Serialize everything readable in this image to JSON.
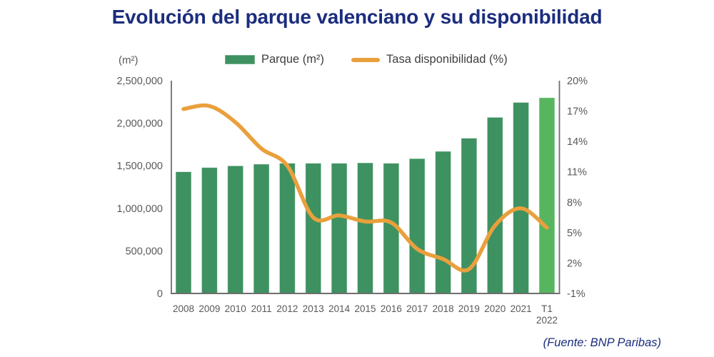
{
  "slide": {
    "title": "Evolución del parque valenciano y su disponibilidad",
    "source": "(Fuente: BNP Paribas)"
  },
  "chart_data": {
    "type": "bar",
    "subtype": "bar-and-line-combo",
    "title": "Evolución del parque valenciano y su disponibilidad",
    "unit_label": "(m²)",
    "grid": false,
    "legend_position": "top",
    "categories": [
      "2008",
      "2009",
      "2010",
      "2011",
      "2012",
      "2013",
      "2014",
      "2015",
      "2016",
      "2017",
      "2018",
      "2019",
      "2020",
      "2021",
      "T1 2022"
    ],
    "series": [
      {
        "name": "Parque (m²)",
        "type": "bar",
        "axis": "left",
        "color": "#3e9160",
        "last_bar_color": "#57b55f",
        "values": [
          1430000,
          1480000,
          1500000,
          1520000,
          1530000,
          1530000,
          1530000,
          1535000,
          1530000,
          1585000,
          1670000,
          1825000,
          2070000,
          2245000,
          2300000
        ]
      },
      {
        "name": "Tasa disponibilidad (%)",
        "type": "line",
        "axis": "right",
        "color": "#e9a03c",
        "values": [
          17.2,
          17.5,
          15.9,
          13.3,
          11.6,
          6.5,
          6.7,
          6.1,
          6.0,
          3.4,
          2.4,
          1.4,
          5.7,
          7.4,
          5.5
        ]
      }
    ],
    "left_axis": {
      "min": 0,
      "max": 2500000,
      "tick_labels": [
        "0",
        "500,000",
        "1,000,000",
        "1,500,000",
        "2,000,000",
        "2,500,000"
      ],
      "tick_values": [
        0,
        500000,
        1000000,
        1500000,
        2000000,
        2500000
      ]
    },
    "right_axis": {
      "min": -1,
      "max": 20,
      "tick_labels": [
        "-1%",
        "2%",
        "5%",
        "8%",
        "11%",
        "14%",
        "17%",
        "20%"
      ],
      "tick_values": [
        -1,
        2,
        5,
        8,
        11,
        14,
        17,
        20
      ]
    },
    "colors": {
      "title": "#1b2d7d",
      "axis_line": "#6f6f6f",
      "tick_text": "#595959"
    }
  }
}
